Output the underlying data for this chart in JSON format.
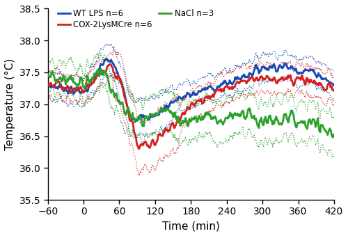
{
  "xlabel": "Time (min)",
  "ylabel": "Temperature (°C)",
  "xlim": [
    -60,
    420
  ],
  "ylim": [
    35.5,
    38.5
  ],
  "xticks": [
    -60,
    0,
    60,
    120,
    180,
    240,
    300,
    360,
    420
  ],
  "yticks": [
    35.5,
    36.0,
    36.5,
    37.0,
    37.5,
    38.0,
    38.5
  ],
  "legend_entries": [
    "WT LPS n=6",
    "COX-2LysMCre n=6",
    "NaCl n=3"
  ],
  "colors": [
    "#1a4bb5",
    "#d42020",
    "#2ca02c"
  ],
  "linewidth_mean": 2.0,
  "linewidth_band": 0.9,
  "figsize": [
    5.0,
    3.39
  ],
  "dpi": 100
}
